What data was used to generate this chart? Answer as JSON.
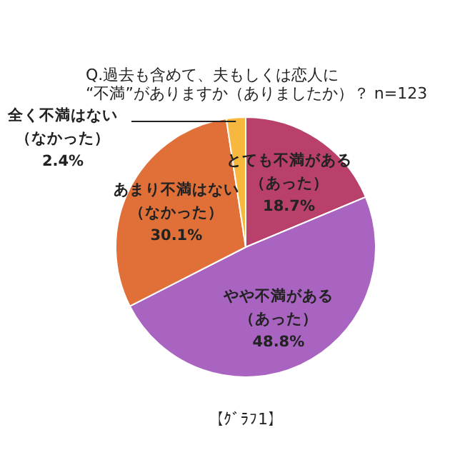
{
  "chart_data": {
    "type": "pie",
    "title": "Q.過去も含めて、夫もしくは恋人に\n“不満”がありますか（ありましたか）？ n=123",
    "categories": [
      "とても不満がある（あった）",
      "やや不満がある（あった）",
      "あまり不満はない（なかった）",
      "全く不満はない（なかった）"
    ],
    "values": [
      18.7,
      48.8,
      30.1,
      2.4
    ],
    "colors": [
      "#b8406a",
      "#a864c0",
      "#e07038",
      "#f8b840"
    ],
    "value_labels": [
      "18.7%",
      "48.8%",
      "30.1%",
      "2.4%"
    ],
    "annotations": [
      "【ｸﾞﾗﾌ1】"
    ]
  }
}
